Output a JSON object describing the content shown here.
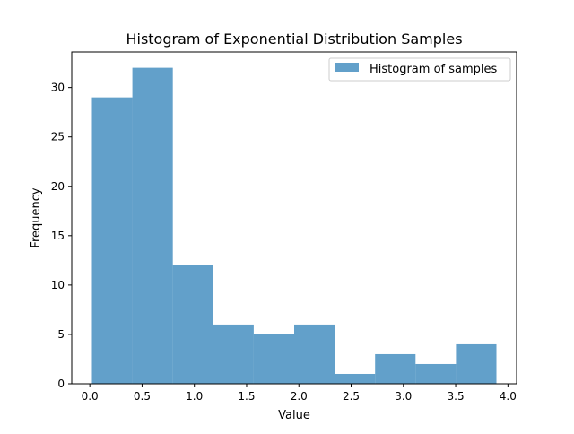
{
  "chart_data": {
    "type": "bar",
    "title": "Histogram of Exponential Distribution Samples",
    "xlabel": "Value",
    "ylabel": "Frequency",
    "bin_edges": [
      0.02,
      0.407,
      0.794,
      1.181,
      1.568,
      1.955,
      2.342,
      2.729,
      3.116,
      3.503,
      3.89
    ],
    "values": [
      29,
      32,
      12,
      6,
      5,
      6,
      1,
      3,
      2,
      4
    ],
    "xlim": [
      -0.173,
      4.083
    ],
    "ylim": [
      0,
      33.6
    ],
    "xticks": [
      0.0,
      0.5,
      1.0,
      1.5,
      2.0,
      2.5,
      3.0,
      3.5,
      4.0
    ],
    "xtick_labels": [
      "0.0",
      "0.5",
      "1.0",
      "1.5",
      "2.0",
      "2.5",
      "3.0",
      "3.5",
      "4.0"
    ],
    "yticks": [
      0,
      5,
      10,
      15,
      20,
      25,
      30
    ],
    "ytick_labels": [
      "0",
      "5",
      "10",
      "15",
      "20",
      "25",
      "30"
    ],
    "series": [
      {
        "name": "Histogram of samples",
        "color": "#1f77b4",
        "opacity": 0.7
      }
    ],
    "legend_position": "top-right",
    "grid": false
  }
}
